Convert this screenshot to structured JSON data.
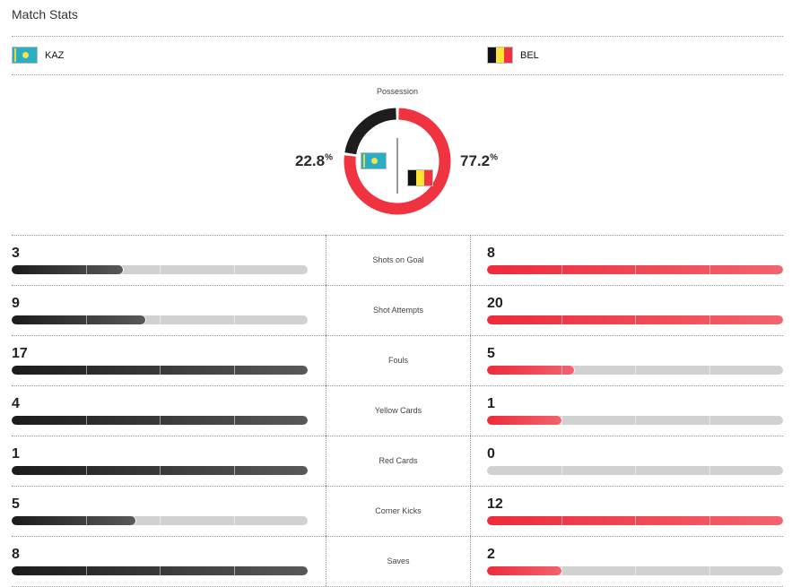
{
  "title": "Match Stats",
  "home": {
    "abbr": "KAZ",
    "flag": "kazakhstan-flag",
    "possession": "22.8",
    "color": "#1d1d1e"
  },
  "away": {
    "abbr": "BEL",
    "flag": "belgium-flag",
    "possession": "77.2",
    "color": "#ef3340"
  },
  "possession_label": "Possession",
  "percent_sign": "%",
  "stats": [
    {
      "label": "Shots on Goal",
      "home": "3",
      "away": "8"
    },
    {
      "label": "Shot Attempts",
      "home": "9",
      "away": "20"
    },
    {
      "label": "Fouls",
      "home": "17",
      "away": "5"
    },
    {
      "label": "Yellow Cards",
      "home": "4",
      "away": "1"
    },
    {
      "label": "Red Cards",
      "home": "1",
      "away": "0"
    },
    {
      "label": "Corner Kicks",
      "home": "5",
      "away": "12"
    },
    {
      "label": "Saves",
      "home": "8",
      "away": "2"
    }
  ]
}
